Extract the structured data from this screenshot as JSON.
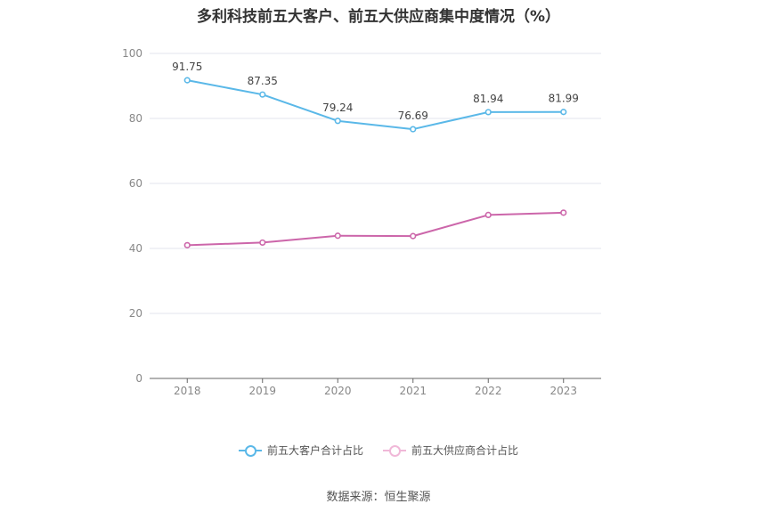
{
  "chart_data": {
    "type": "line",
    "title": "多利科技前五大客户、前五大供应商集中度情况（%）",
    "categories": [
      "2018",
      "2019",
      "2020",
      "2021",
      "2022",
      "2023"
    ],
    "ylim": [
      0,
      100
    ],
    "yticks": [
      0,
      20,
      40,
      60,
      80,
      100
    ],
    "grid": true,
    "legend_position": "bottom",
    "series": [
      {
        "name": "前五大客户合计占比",
        "color": "#5ab8e8",
        "values": [
          91.75,
          87.35,
          79.24,
          76.69,
          81.94,
          81.99
        ],
        "labels": [
          "91.75",
          "87.35",
          "79.24",
          "76.69",
          "81.94",
          "81.99"
        ]
      },
      {
        "name": "前五大供应商合计占比",
        "color": "#cc66aa",
        "values": [
          41.0,
          41.8,
          43.9,
          43.8,
          50.3,
          51.0
        ],
        "labels": []
      }
    ],
    "source": "数据来源：恒生聚源"
  }
}
